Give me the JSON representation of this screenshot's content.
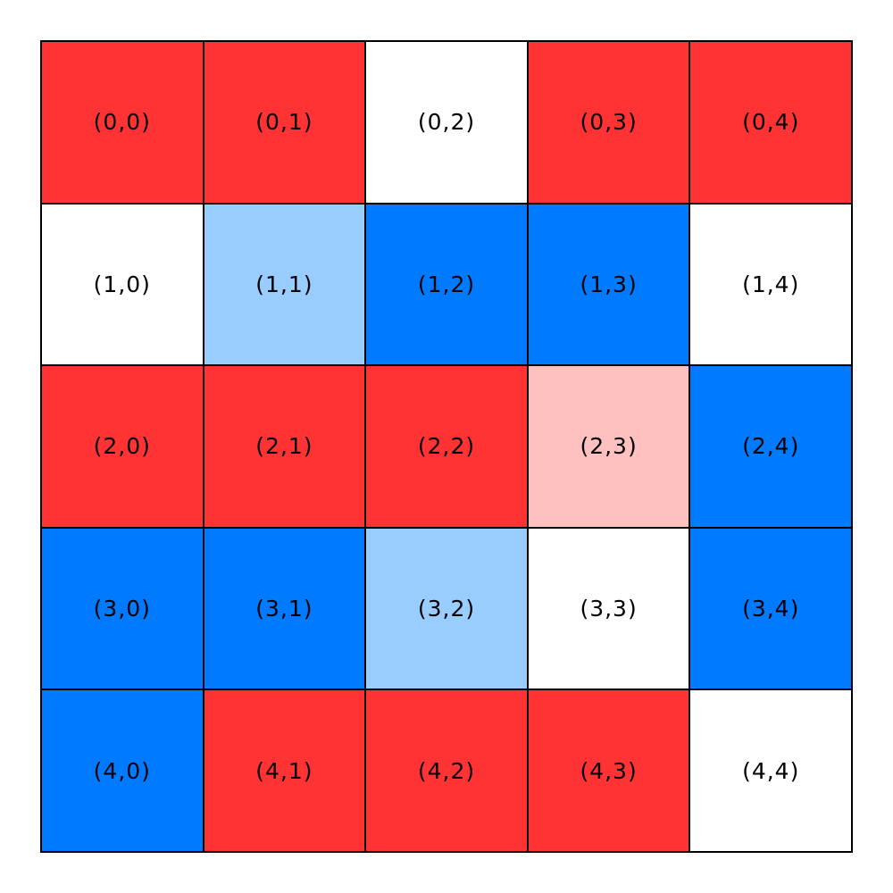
{
  "chart_data": {
    "type": "heatmap",
    "rows": 5,
    "cols": 5,
    "cell_labels": [
      [
        "(0,0)",
        "(0,1)",
        "(0,2)",
        "(0,3)",
        "(0,4)"
      ],
      [
        "(1,0)",
        "(1,1)",
        "(1,2)",
        "(1,3)",
        "(1,4)"
      ],
      [
        "(2,0)",
        "(2,1)",
        "(2,2)",
        "(2,3)",
        "(2,4)"
      ],
      [
        "(3,0)",
        "(3,1)",
        "(3,2)",
        "(3,3)",
        "(3,4)"
      ],
      [
        "(4,0)",
        "(4,1)",
        "(4,2)",
        "(4,3)",
        "(4,4)"
      ]
    ],
    "cell_colors": [
      [
        "red",
        "red",
        "white",
        "red",
        "red"
      ],
      [
        "white",
        "lightblue",
        "blue",
        "blue",
        "white"
      ],
      [
        "red",
        "red",
        "red",
        "pink",
        "blue"
      ],
      [
        "blue",
        "blue",
        "lightblue",
        "white",
        "blue"
      ],
      [
        "blue",
        "red",
        "red",
        "red",
        "white"
      ]
    ],
    "palette": {
      "red": "#FF3333",
      "blue": "#007BFF",
      "lightblue": "#99CCFF",
      "pink": "#FFC0C0",
      "white": "#FFFFFF"
    },
    "grid_line_color": "#000000",
    "text_color": "#000000",
    "title": "",
    "legend": false
  }
}
